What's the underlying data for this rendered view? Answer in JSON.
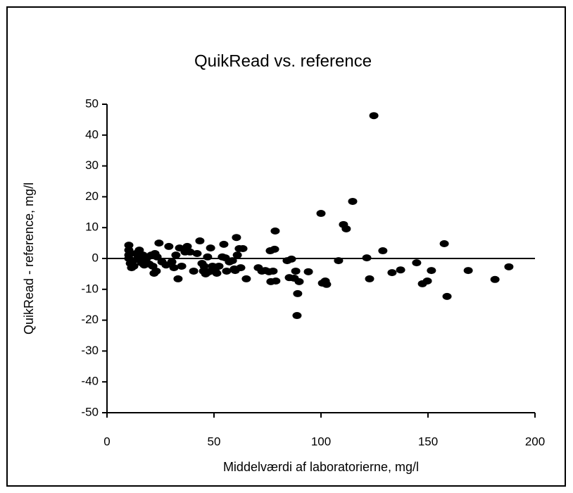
{
  "chart_data": {
    "type": "scatter",
    "title": "QuikRead vs. reference",
    "xlabel": "Middelværdi af laboratorierne, mg/l",
    "ylabel": "QuikRead - reference, mg/l",
    "xlim": [
      0,
      200
    ],
    "xticks": [
      0,
      50,
      100,
      150,
      200
    ],
    "ylim": [
      -50,
      50
    ],
    "yticks": [
      -50,
      -40,
      -30,
      -20,
      -10,
      0,
      10,
      20,
      30,
      40,
      50
    ],
    "hline": 0,
    "color": "#000000",
    "x": [
      10.2,
      10.2,
      10.2,
      10.2,
      10.9,
      11.8,
      12.5,
      11.5,
      13.5,
      14.1,
      15.1,
      15.8,
      16.1,
      16.8,
      17.4,
      18.1,
      19.1,
      19.7,
      20.7,
      21.4,
      22.0,
      23.0,
      22.4,
      23.4,
      24.3,
      25.7,
      27.6,
      28.9,
      30.3,
      31.3,
      32.2,
      33.2,
      33.9,
      34.9,
      36.5,
      37.5,
      38.8,
      40.5,
      42.1,
      43.4,
      44.4,
      45.1,
      45.4,
      46.1,
      47.0,
      47.7,
      48.4,
      49.3,
      50.0,
      50.7,
      51.3,
      52.3,
      53.9,
      54.6,
      55.3,
      55.9,
      57.2,
      58.6,
      59.5,
      60.9,
      61.8,
      62.5,
      59.9,
      60.5,
      63.5,
      65.1,
      70.7,
      72.4,
      74.0,
      75.7,
      76.3,
      76.6,
      77.6,
      78.3,
      78.6,
      78.9,
      84.2,
      85.2,
      86.2,
      87.5,
      88.2,
      89.1,
      89.8,
      88.8,
      94.1,
      100.0,
      100.7,
      102.0,
      102.6,
      108.2,
      110.5,
      111.8,
      114.8,
      121.4,
      122.7,
      124.7,
      128.9,
      133.2,
      137.2,
      144.7,
      147.4,
      149.7,
      151.6,
      157.6,
      158.9,
      168.8,
      181.3,
      187.8
    ],
    "values": [
      4.3,
      2.7,
      1.1,
      0,
      -1.6,
      -1.1,
      -2.5,
      -3.0,
      1.6,
      -0.2,
      2.7,
      0.5,
      -1.4,
      1.1,
      -2.1,
      -0.7,
      0.5,
      -1.8,
      1.1,
      -2.5,
      -4.8,
      -4.1,
      1.6,
      0.5,
      5.0,
      -1.1,
      -2.1,
      3.9,
      -1.1,
      -3.0,
      1.1,
      -6.6,
      3.4,
      -2.5,
      2.1,
      3.9,
      2.1,
      -4.1,
      1.6,
      5.7,
      -1.6,
      -4.1,
      -2.5,
      -5.0,
      0.5,
      -4.3,
      3.4,
      -2.5,
      -3.0,
      -4.3,
      -4.8,
      -2.5,
      0.5,
      4.6,
      0.2,
      -4.1,
      -1.1,
      -0.7,
      -3.4,
      1.1,
      3.2,
      -3.0,
      -3.9,
      6.8,
      3.2,
      -6.6,
      -3.0,
      -4.1,
      -3.9,
      -4.3,
      2.5,
      -7.5,
      -4.1,
      3.0,
      8.9,
      -7.3,
      -0.7,
      -6.2,
      -0.2,
      -6.4,
      -4.1,
      -11.4,
      -7.5,
      -18.5,
      -4.3,
      14.6,
      -8.0,
      -7.3,
      -8.4,
      -0.7,
      11.0,
      9.6,
      18.5,
      0.2,
      -6.6,
      46.3,
      2.5,
      -4.6,
      -3.7,
      -1.4,
      -8.2,
      -7.3,
      -3.9,
      4.8,
      -12.3,
      -3.9,
      -6.8,
      -2.7
    ]
  }
}
